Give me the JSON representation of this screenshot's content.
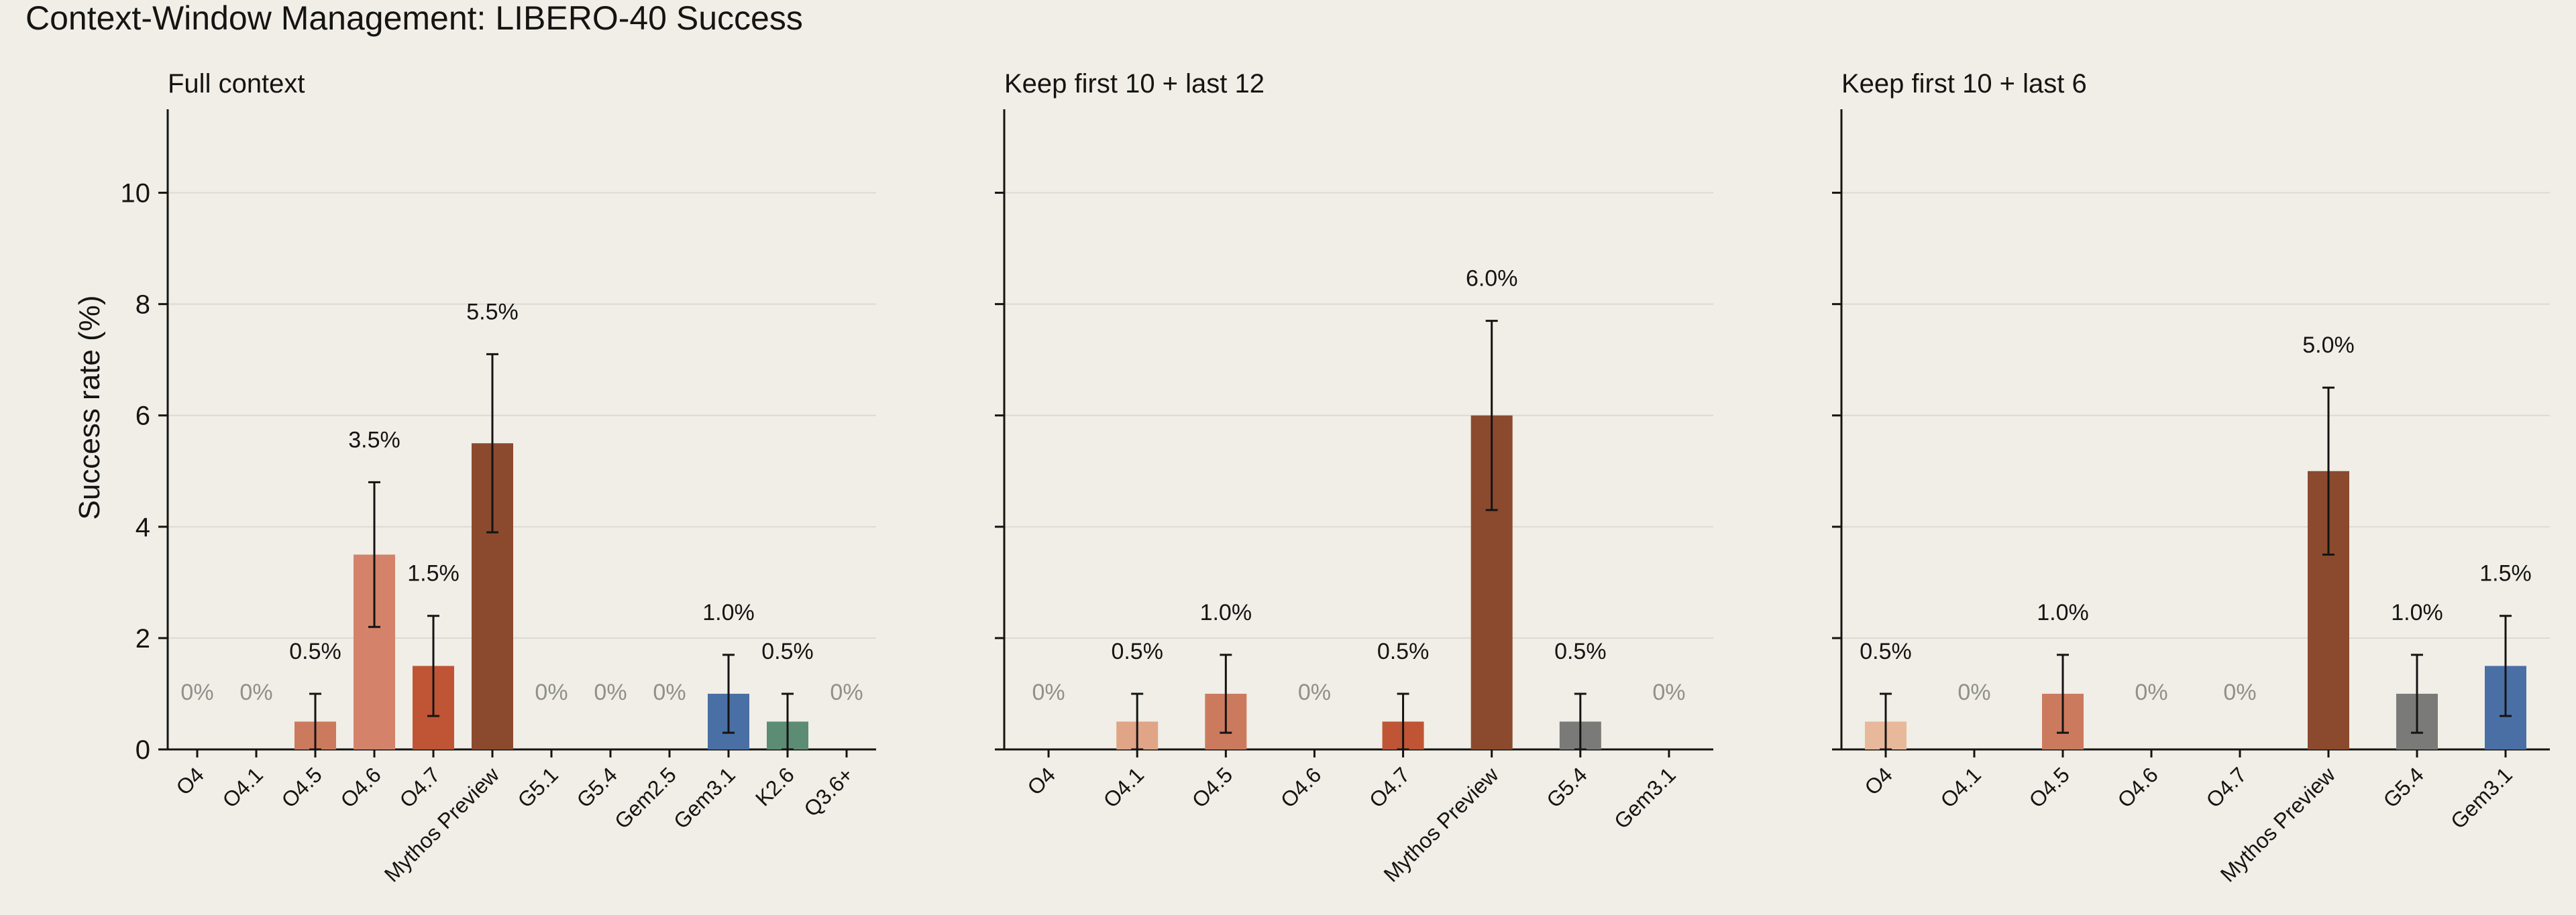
{
  "title": "Context-Window Management: LIBERO-40 Success",
  "chart_data": [
    {
      "type": "bar",
      "title": "Full context",
      "ylabel": "Success rate (%)",
      "ylim": [
        0,
        11.5
      ],
      "yticks": [
        0,
        2,
        4,
        6,
        8,
        10
      ],
      "grid": "horizontal",
      "categories": [
        "O4",
        "O4.1",
        "O4.5",
        "O4.6",
        "O4.7",
        "Mythos Preview",
        "G5.1",
        "G5.4",
        "Gem2.5",
        "Gem3.1",
        "K2.6",
        "Q3.6+"
      ],
      "values": [
        0,
        0,
        0.5,
        3.5,
        1.5,
        5.5,
        0,
        0,
        0,
        1.0,
        0.5,
        0
      ],
      "error_low": [
        0,
        0,
        0.0,
        2.2,
        0.6,
        3.9,
        0,
        0,
        0,
        0.3,
        0.0,
        0
      ],
      "error_high": [
        0,
        0,
        1.0,
        4.8,
        2.4,
        7.1,
        0,
        0,
        0,
        1.7,
        1.0,
        0
      ],
      "labels": [
        "0%",
        "0%",
        "0.5%",
        "3.5%",
        "1.5%",
        "5.5%",
        "0%",
        "0%",
        "0%",
        "1.0%",
        "0.5%",
        "0%"
      ],
      "colors": [
        "#f0c4a4",
        "#e0a486",
        "#cc7a5e",
        "#d4826a",
        "#bf5535",
        "#8b4a2e",
        "#9a9a9a",
        "#7a7a78",
        "#9ab5d8",
        "#4a6fa5",
        "#5c8c74",
        "#a06a9a"
      ]
    },
    {
      "type": "bar",
      "title": "Keep first 10 + last 12",
      "ylim": [
        0,
        11.5
      ],
      "yticks": [
        0,
        2,
        4,
        6,
        8,
        10
      ],
      "grid": "horizontal",
      "categories": [
        "O4",
        "O4.1",
        "O4.5",
        "O4.6",
        "O4.7",
        "Mythos Preview",
        "G5.4",
        "Gem3.1"
      ],
      "values": [
        0,
        0.5,
        1.0,
        0,
        0.5,
        6.0,
        0.5,
        0
      ],
      "error_low": [
        0,
        0.0,
        0.3,
        0,
        0.0,
        4.3,
        0.0,
        0
      ],
      "error_high": [
        0,
        1.0,
        1.7,
        0,
        1.0,
        7.7,
        1.0,
        0
      ],
      "labels": [
        "0%",
        "0.5%",
        "1.0%",
        "0%",
        "0.5%",
        "6.0%",
        "0.5%",
        "0%"
      ],
      "colors": [
        "#f0c4a4",
        "#e0a486",
        "#cc7a5e",
        "#d4826a",
        "#bf5535",
        "#8b4a2e",
        "#7a7a78",
        "#4a6fa5"
      ]
    },
    {
      "type": "bar",
      "title": "Keep first 10 + last 6",
      "ylim": [
        0,
        11.5
      ],
      "yticks": [
        0,
        2,
        4,
        6,
        8,
        10
      ],
      "grid": "horizontal",
      "categories": [
        "O4",
        "O4.1",
        "O4.5",
        "O4.6",
        "O4.7",
        "Mythos Preview",
        "G5.4",
        "Gem3.1"
      ],
      "values": [
        0.5,
        0,
        1.0,
        0,
        0,
        5.0,
        1.0,
        1.5
      ],
      "error_low": [
        0.0,
        0,
        0.3,
        0,
        0,
        3.5,
        0.3,
        0.6
      ],
      "error_high": [
        1.0,
        0,
        1.7,
        0,
        0,
        6.5,
        1.7,
        2.4
      ],
      "labels": [
        "0.5%",
        "0%",
        "1.0%",
        "0%",
        "0%",
        "5.0%",
        "1.0%",
        "1.5%"
      ],
      "colors": [
        "#e8b89a",
        "#e0a486",
        "#cc7a5e",
        "#d4826a",
        "#bf5535",
        "#8b4a2e",
        "#7a7a78",
        "#4a6fa5"
      ]
    }
  ]
}
